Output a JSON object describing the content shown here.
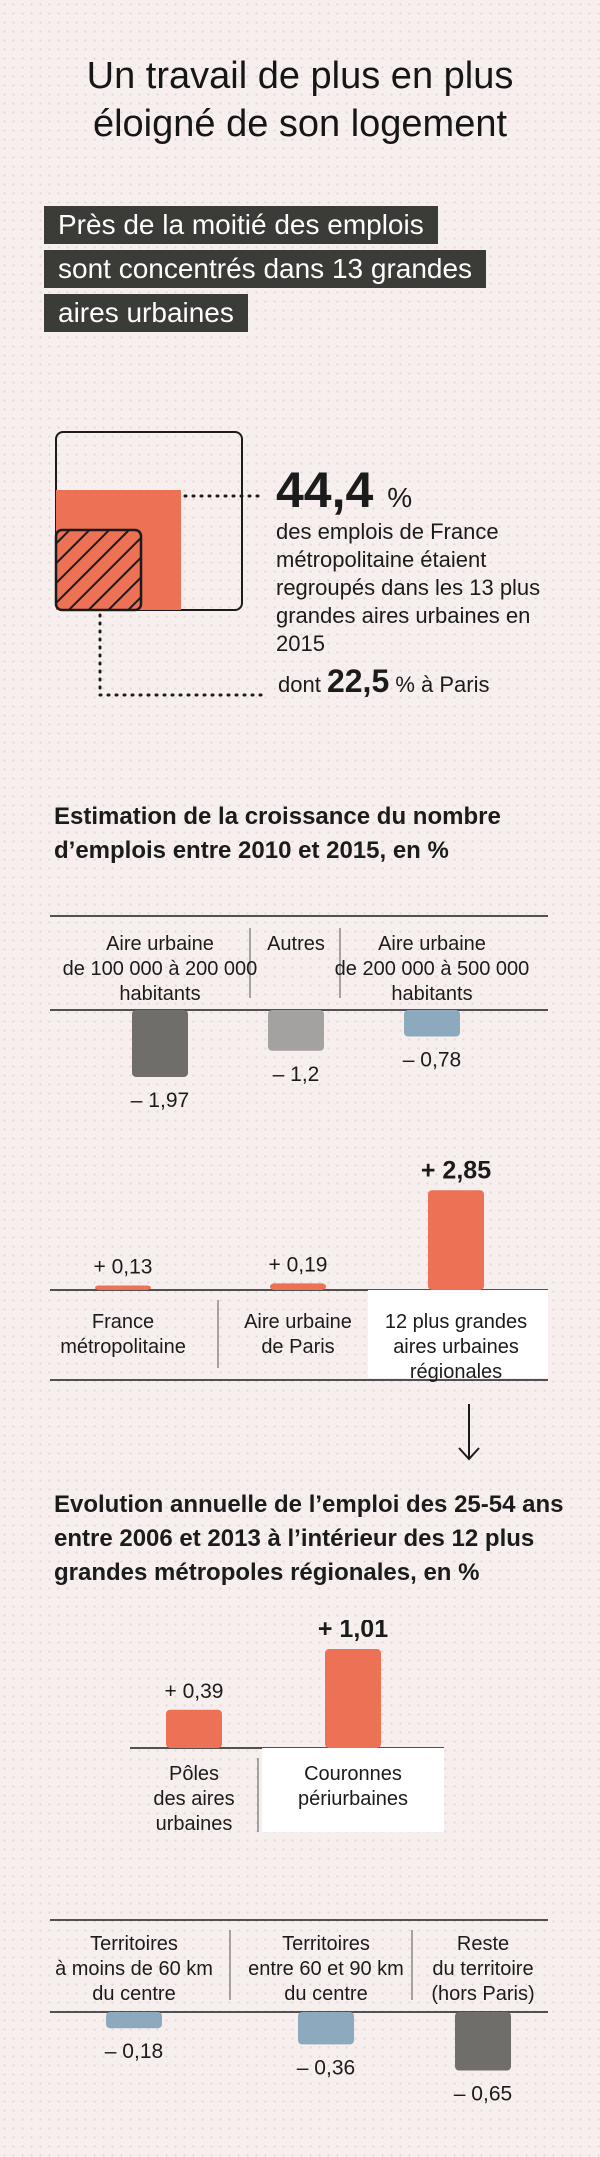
{
  "title": {
    "line1": "Un travail de plus en plus",
    "line2": "éloigné de son logement"
  },
  "subtitle": {
    "line1": "Près de la moitié des emplois",
    "line2": "sont concentrés dans 13 grandes",
    "line3": "aires urbaines"
  },
  "stat": {
    "value": "44,4",
    "unit": "%",
    "description": "des emplois de France métropolitaine étaient regroupés dans les 13 plus grandes aires urbaines en 2015",
    "dont_prefix": "dont",
    "dont_value": "22,5",
    "dont_suffix": "% à Paris",
    "total_share": 44.4,
    "paris_share": 22.5
  },
  "colors": {
    "orange": "#ec7155",
    "dark_gray": "#6f6e6b",
    "light_gray": "#a4a2a0",
    "blue": "#8ca9bd",
    "band": "#3b3b38"
  },
  "chart_data": [
    {
      "type": "bar",
      "title": "Estimation de la croissance du nombre d’emplois entre 2010 et 2015, en %",
      "title_lines": [
        "Estimation de la croissance du nombre",
        "d’emplois entre 2010 et 2015, en %"
      ],
      "groups": [
        {
          "categories": [
            [
              "Aire urbaine",
              "de 100 000 à 200 000",
              "habitants"
            ],
            [
              "Autres"
            ],
            [
              "Aire urbaine",
              "de 200 000 à 500 000",
              "habitants"
            ]
          ],
          "values": [
            -1.97,
            -1.2,
            -0.78
          ],
          "labels": [
            "– 1,97",
            "– 1,2",
            "– 0,78"
          ],
          "colors": [
            "dark_gray",
            "light_gray",
            "blue"
          ]
        },
        {
          "categories": [
            [
              "France",
              "métropolitaine"
            ],
            [
              "Aire urbaine",
              "de Paris"
            ],
            [
              "12 plus grandes",
              "aires urbaines",
              "régionales"
            ]
          ],
          "values": [
            0.13,
            0.19,
            2.85
          ],
          "labels": [
            "+ 0,13",
            "+ 0,19",
            "+ 2,85"
          ],
          "colors": [
            "orange",
            "orange",
            "orange"
          ],
          "highlight": 2
        }
      ]
    },
    {
      "type": "bar",
      "title": "Evolution annuelle de l’emploi des 25-54 ans entre 2006 et 2013 à l’intérieur des 12 plus grandes métropoles régionales, en %",
      "title_lines": [
        "Evolution annuelle de l’emploi des 25-54 ans",
        "entre 2006 et 2013 à l’intérieur des 12 plus",
        "grandes métropoles régionales, en %"
      ],
      "groups": [
        {
          "categories": [
            [
              "Pôles",
              "des aires",
              "urbaines"
            ],
            [
              "Couronnes",
              "périurbaines"
            ]
          ],
          "values": [
            0.39,
            1.01
          ],
          "labels": [
            "+ 0,39",
            "+ 1,01"
          ],
          "colors": [
            "orange",
            "orange"
          ],
          "highlight": 1
        },
        {
          "categories": [
            [
              "Territoires",
              "à moins de 60 km",
              "du centre"
            ],
            [
              "Territoires",
              "entre 60 et 90 km",
              "du centre"
            ],
            [
              "Reste",
              "du territoire",
              "(hors Paris)"
            ]
          ],
          "values": [
            -0.18,
            -0.36,
            -0.65
          ],
          "labels": [
            "– 0,18",
            "– 0,36",
            "– 0,65"
          ],
          "colors": [
            "blue",
            "blue",
            "dark_gray"
          ]
        }
      ]
    }
  ]
}
